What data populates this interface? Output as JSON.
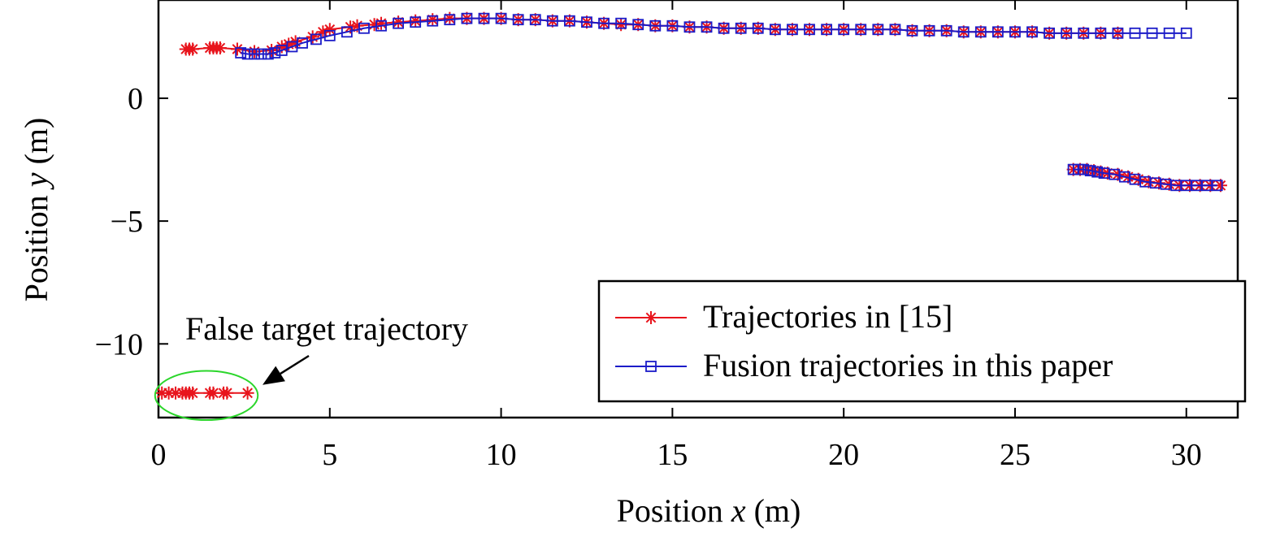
{
  "chart_data": {
    "type": "line",
    "xlabel": {
      "prefix": "Position ",
      "var": "x",
      "suffix": " (m)"
    },
    "ylabel": {
      "prefix": "Position ",
      "var": "y",
      "suffix": " (m)"
    },
    "xlim": [
      0,
      31.5
    ],
    "ylim": [
      -13,
      4
    ],
    "xticks": [
      0,
      5,
      10,
      15,
      20,
      25,
      30
    ],
    "yticks": [
      0,
      -5,
      -10
    ],
    "ytick_labels": [
      "0",
      "−5",
      "−10"
    ],
    "grid": false,
    "legend": {
      "placement": "bottom-right",
      "entries": [
        "Trajectories in [15]",
        "Fusion trajectories in this paper"
      ]
    },
    "colors": {
      "series1": "#e8141c",
      "series2": "#1c1cc8",
      "annotation_ellipse": "#2bd62b"
    },
    "series": [
      {
        "name": "Trajectories in [15]",
        "marker": "asterisk",
        "tracks": [
          [
            [
              0.8,
              2
            ],
            [
              0.9,
              2
            ],
            [
              1.0,
              2
            ],
            [
              1.5,
              2.05
            ],
            [
              1.6,
              2.05
            ],
            [
              1.7,
              2.05
            ],
            [
              1.8,
              2.05
            ],
            [
              2.3,
              2.0
            ],
            [
              2.8,
              1.9
            ],
            [
              3.3,
              1.95
            ],
            [
              3.6,
              2.1
            ],
            [
              3.8,
              2.2
            ],
            [
              4.0,
              2.3
            ],
            [
              4.5,
              2.5
            ],
            [
              4.8,
              2.7
            ],
            [
              5.0,
              2.8
            ],
            [
              5.6,
              2.9
            ],
            [
              5.8,
              2.95
            ],
            [
              6.3,
              3.0
            ],
            [
              6.5,
              3.05
            ],
            [
              7.0,
              3.1
            ],
            [
              7.5,
              3.15
            ],
            [
              8.0,
              3.2
            ],
            [
              8.5,
              3.25
            ],
            [
              9.0,
              3.25
            ],
            [
              9.5,
              3.25
            ],
            [
              10.0,
              3.25
            ],
            [
              10.5,
              3.2
            ],
            [
              11.0,
              3.2
            ],
            [
              11.5,
              3.15
            ],
            [
              12.0,
              3.15
            ],
            [
              12.5,
              3.1
            ],
            [
              13.0,
              3.05
            ],
            [
              13.5,
              3.0
            ],
            [
              14.0,
              3.0
            ],
            [
              14.5,
              2.95
            ],
            [
              15.0,
              2.95
            ],
            [
              15.5,
              2.9
            ],
            [
              16.0,
              2.9
            ],
            [
              16.5,
              2.85
            ],
            [
              17.0,
              2.85
            ],
            [
              17.5,
              2.85
            ],
            [
              18.0,
              2.8
            ],
            [
              18.5,
              2.8
            ],
            [
              19.0,
              2.8
            ],
            [
              19.5,
              2.8
            ],
            [
              20.0,
              2.8
            ],
            [
              20.5,
              2.8
            ],
            [
              21.0,
              2.8
            ],
            [
              21.5,
              2.8
            ],
            [
              22.0,
              2.75
            ],
            [
              22.5,
              2.75
            ],
            [
              23.0,
              2.75
            ],
            [
              23.5,
              2.7
            ],
            [
              24.0,
              2.7
            ],
            [
              24.5,
              2.7
            ],
            [
              25.0,
              2.7
            ],
            [
              25.5,
              2.7
            ],
            [
              26.0,
              2.65
            ],
            [
              26.5,
              2.65
            ],
            [
              27.0,
              2.65
            ],
            [
              27.5,
              2.65
            ],
            [
              28.0,
              2.65
            ]
          ],
          [
            [
              26.7,
              -2.9
            ],
            [
              26.9,
              -2.9
            ],
            [
              27.1,
              -2.9
            ],
            [
              27.3,
              -2.95
            ],
            [
              27.5,
              -3.0
            ],
            [
              27.7,
              -3.05
            ],
            [
              28.0,
              -3.1
            ],
            [
              28.3,
              -3.2
            ],
            [
              28.6,
              -3.3
            ],
            [
              28.9,
              -3.4
            ],
            [
              29.2,
              -3.45
            ],
            [
              29.5,
              -3.5
            ],
            [
              29.8,
              -3.55
            ],
            [
              30.1,
              -3.55
            ],
            [
              30.4,
              -3.55
            ],
            [
              30.7,
              -3.55
            ],
            [
              31.0,
              -3.55
            ]
          ],
          [
            [
              0.1,
              -12
            ],
            [
              0.3,
              -12
            ],
            [
              0.5,
              -12
            ],
            [
              0.7,
              -12
            ],
            [
              0.8,
              -12
            ],
            [
              0.9,
              -12
            ],
            [
              1.0,
              -12
            ],
            [
              1.5,
              -12
            ],
            [
              1.6,
              -12
            ],
            [
              1.9,
              -12
            ],
            [
              2.0,
              -12
            ],
            [
              2.6,
              -12
            ]
          ]
        ]
      },
      {
        "name": "Fusion trajectories in this paper",
        "marker": "square",
        "tracks": [
          [
            [
              2.4,
              1.85
            ],
            [
              2.6,
              1.8
            ],
            [
              2.8,
              1.8
            ],
            [
              3.0,
              1.8
            ],
            [
              3.2,
              1.8
            ],
            [
              3.4,
              1.85
            ],
            [
              3.6,
              1.95
            ],
            [
              3.9,
              2.1
            ],
            [
              4.2,
              2.25
            ],
            [
              4.6,
              2.4
            ],
            [
              5.0,
              2.55
            ],
            [
              5.5,
              2.7
            ],
            [
              6.0,
              2.85
            ],
            [
              6.5,
              2.95
            ],
            [
              7.0,
              3.05
            ],
            [
              7.5,
              3.1
            ],
            [
              8.0,
              3.15
            ],
            [
              8.5,
              3.2
            ],
            [
              9.0,
              3.25
            ],
            [
              9.5,
              3.25
            ],
            [
              10.0,
              3.25
            ],
            [
              10.5,
              3.2
            ],
            [
              11.0,
              3.2
            ],
            [
              11.5,
              3.15
            ],
            [
              12.0,
              3.15
            ],
            [
              12.5,
              3.1
            ],
            [
              13.0,
              3.05
            ],
            [
              13.5,
              3.05
            ],
            [
              14.0,
              3.0
            ],
            [
              14.5,
              2.95
            ],
            [
              15.0,
              2.95
            ],
            [
              15.5,
              2.9
            ],
            [
              16.0,
              2.9
            ],
            [
              16.5,
              2.85
            ],
            [
              17.0,
              2.85
            ],
            [
              17.5,
              2.85
            ],
            [
              18.0,
              2.8
            ],
            [
              18.5,
              2.8
            ],
            [
              19.0,
              2.8
            ],
            [
              19.5,
              2.8
            ],
            [
              20.0,
              2.8
            ],
            [
              20.5,
              2.8
            ],
            [
              21.0,
              2.8
            ],
            [
              21.5,
              2.8
            ],
            [
              22.0,
              2.75
            ],
            [
              22.5,
              2.75
            ],
            [
              23.0,
              2.75
            ],
            [
              23.5,
              2.7
            ],
            [
              24.0,
              2.7
            ],
            [
              24.5,
              2.7
            ],
            [
              25.0,
              2.7
            ],
            [
              25.5,
              2.7
            ],
            [
              26.0,
              2.65
            ],
            [
              26.5,
              2.65
            ],
            [
              27.0,
              2.65
            ],
            [
              27.5,
              2.65
            ],
            [
              28.0,
              2.65
            ],
            [
              28.5,
              2.65
            ],
            [
              29.0,
              2.65
            ],
            [
              29.5,
              2.65
            ],
            [
              30.0,
              2.65
            ]
          ],
          [
            [
              26.7,
              -2.9
            ],
            [
              26.85,
              -2.9
            ],
            [
              27.0,
              -2.9
            ],
            [
              27.2,
              -2.95
            ],
            [
              27.4,
              -3.0
            ],
            [
              27.6,
              -3.05
            ],
            [
              27.9,
              -3.1
            ],
            [
              28.2,
              -3.2
            ],
            [
              28.5,
              -3.3
            ],
            [
              28.8,
              -3.4
            ],
            [
              29.1,
              -3.45
            ],
            [
              29.4,
              -3.5
            ],
            [
              29.7,
              -3.55
            ],
            [
              30.0,
              -3.55
            ],
            [
              30.3,
              -3.55
            ],
            [
              30.6,
              -3.55
            ],
            [
              30.9,
              -3.55
            ]
          ]
        ]
      }
    ],
    "annotations": [
      {
        "text": "False target trajectory",
        "target": [
          2.8,
          -11.8
        ],
        "ellipse_center": [
          1.4,
          -12.1
        ],
        "ellipse_radii": [
          1.5,
          1.0
        ]
      }
    ]
  }
}
